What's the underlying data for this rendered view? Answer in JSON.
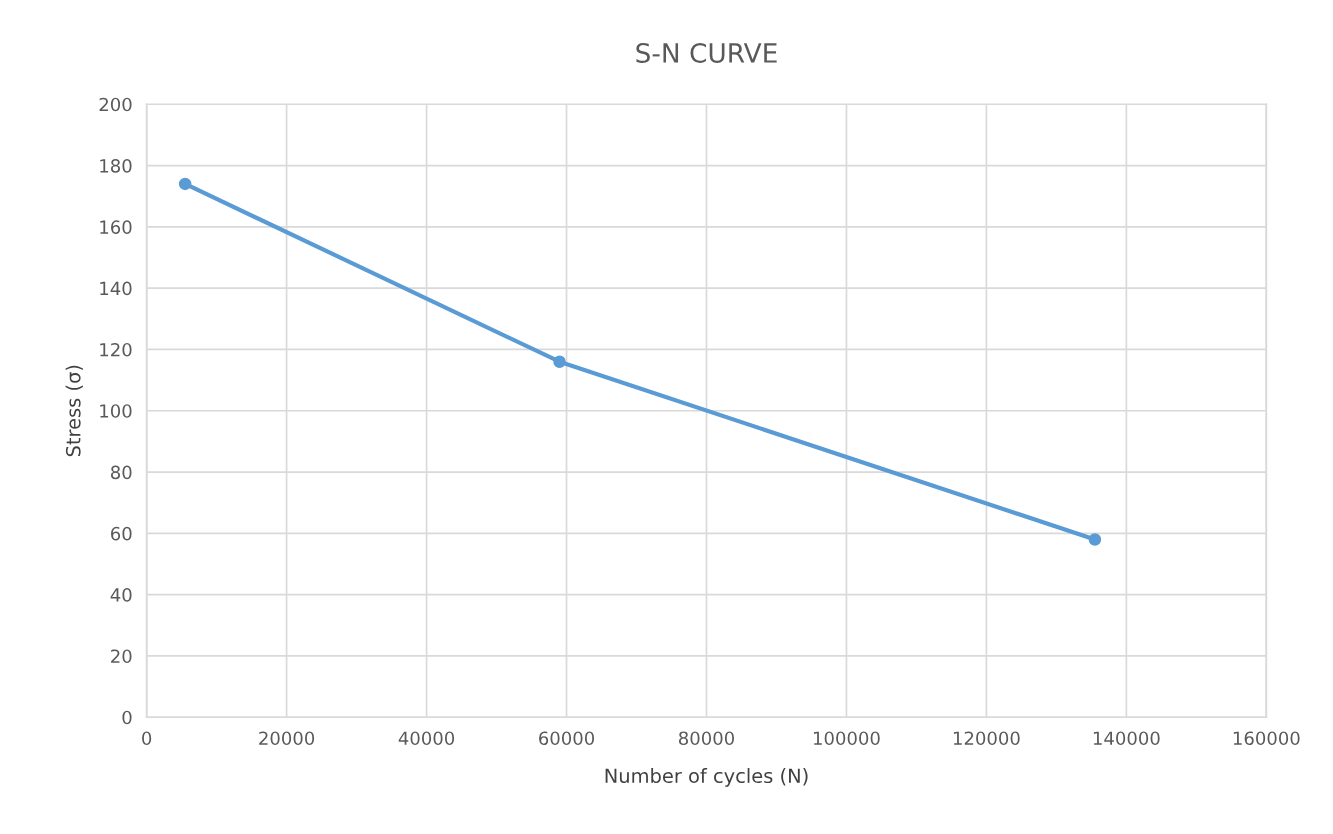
{
  "chart_data": {
    "type": "line",
    "title": "S-N CURVE",
    "xlabel": "Number of cycles (N)",
    "ylabel": "Stress (σ)",
    "x": [
      5500,
      59000,
      135500
    ],
    "series": [
      {
        "color": "#5b9bd5",
        "values": [
          174,
          116,
          58
        ]
      }
    ],
    "xlim": [
      0,
      160000
    ],
    "xticks": [
      0,
      20000,
      40000,
      60000,
      80000,
      100000,
      120000,
      140000,
      160000
    ],
    "ylim": [
      0,
      200
    ],
    "yticks": [
      0,
      20,
      40,
      60,
      80,
      100,
      120,
      140,
      160,
      180,
      200
    ],
    "grid": true,
    "marker": "circle",
    "line_style": "solid"
  }
}
